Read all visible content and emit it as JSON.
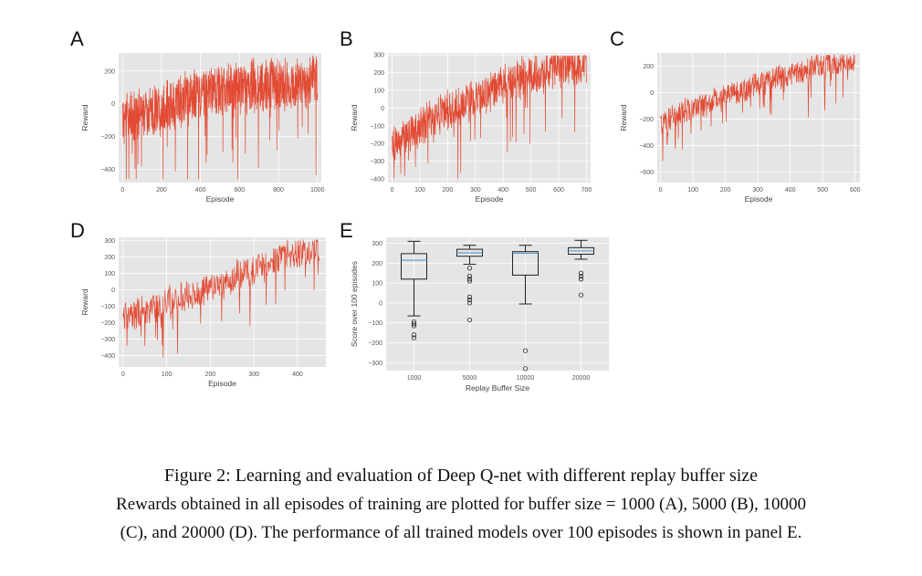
{
  "panels": {
    "A": {
      "letter": "A"
    },
    "B": {
      "letter": "B"
    },
    "C": {
      "letter": "C"
    },
    "D": {
      "letter": "D"
    },
    "E": {
      "letter": "E"
    }
  },
  "caption": {
    "title": "Figure 2: Learning and evaluation of Deep Q-net with different replay buffer size",
    "line1": "Rewards obtained in all episodes of training are plotted for buffer size = 1000 (A), 5000 (B), 10000",
    "line2": "(C), and 20000 (D). The performance of all trained models over 100 episodes is shown in panel E."
  },
  "colors": {
    "line": "#e24a33",
    "panel_bg": "#e5e5e5",
    "grid": "#ffffff",
    "box_median": "#5b9bd5"
  },
  "chart_data": [
    {
      "id": "A",
      "type": "line",
      "xlabel": "Episode",
      "ylabel": "Reward",
      "xlim": [
        -20,
        1020
      ],
      "ylim": [
        -480,
        310
      ],
      "xticks": [
        0,
        200,
        400,
        600,
        800,
        1000
      ],
      "yticks": [
        -400,
        -200,
        0,
        200
      ],
      "episodes": 1000,
      "trend": [
        [
          0,
          -80
        ],
        [
          200,
          -30
        ],
        [
          400,
          60
        ],
        [
          600,
          110
        ],
        [
          800,
          120
        ],
        [
          1000,
          130
        ]
      ],
      "noise_amp": 180
    },
    {
      "id": "B",
      "type": "line",
      "xlabel": "Episode",
      "ylabel": "Reward",
      "xlim": [
        -15,
        715
      ],
      "ylim": [
        -420,
        310
      ],
      "xticks": [
        0,
        100,
        200,
        300,
        400,
        500,
        600,
        700
      ],
      "yticks": [
        -400,
        -300,
        -200,
        -100,
        0,
        100,
        200,
        300
      ],
      "episodes": 700,
      "trend": [
        [
          0,
          -210
        ],
        [
          100,
          -110
        ],
        [
          200,
          -20
        ],
        [
          300,
          60
        ],
        [
          400,
          130
        ],
        [
          500,
          190
        ],
        [
          600,
          230
        ],
        [
          700,
          260
        ]
      ],
      "noise_amp": 130
    },
    {
      "id": "C",
      "type": "line",
      "xlabel": "Episode",
      "ylabel": "Reward",
      "xlim": [
        -10,
        615
      ],
      "ylim": [
        -680,
        300
      ],
      "xticks": [
        0,
        100,
        200,
        300,
        400,
        500,
        600
      ],
      "yticks": [
        -600,
        -400,
        -200,
        0,
        200
      ],
      "episodes": 600,
      "trend": [
        [
          0,
          -230
        ],
        [
          100,
          -120
        ],
        [
          200,
          -30
        ],
        [
          300,
          60
        ],
        [
          400,
          140
        ],
        [
          500,
          210
        ],
        [
          600,
          240
        ]
      ],
      "noise_amp": 110
    },
    {
      "id": "D",
      "type": "line",
      "xlabel": "Episode",
      "ylabel": "Reward",
      "xlim": [
        -10,
        465
      ],
      "ylim": [
        -470,
        320
      ],
      "xticks": [
        0,
        100,
        200,
        300,
        400
      ],
      "yticks": [
        -400,
        -300,
        -200,
        -100,
        0,
        100,
        200,
        300
      ],
      "episodes": 450,
      "trend": [
        [
          0,
          -170
        ],
        [
          100,
          -80
        ],
        [
          200,
          10
        ],
        [
          300,
          120
        ],
        [
          400,
          240
        ],
        [
          450,
          260
        ]
      ],
      "noise_amp": 110
    },
    {
      "id": "E",
      "type": "box",
      "xlabel": "Replay Buffer Size",
      "ylabel": "Score over 100 episodes",
      "ylim": [
        -340,
        330
      ],
      "yticks": [
        -300,
        -200,
        -100,
        0,
        100,
        200,
        300
      ],
      "categories": [
        "1000",
        "5000",
        "10000",
        "20000"
      ],
      "boxes": [
        {
          "q1": 120,
          "median": 215,
          "q3": 248,
          "whisker_low": -65,
          "whisker_high": 310,
          "outliers": [
            -95,
            -105,
            -115,
            -160,
            -175
          ]
        },
        {
          "q1": 235,
          "median": 252,
          "q3": 270,
          "whisker_low": 195,
          "whisker_high": 290,
          "outliers": [
            175,
            135,
            120,
            110,
            30,
            15,
            0,
            -85
          ]
        },
        {
          "q1": 140,
          "median": 250,
          "q3": 258,
          "whisker_low": -5,
          "whisker_high": 290,
          "outliers": [
            -240,
            -330
          ]
        },
        {
          "q1": 245,
          "median": 262,
          "q3": 278,
          "whisker_low": 220,
          "whisker_high": 315,
          "outliers": [
            150,
            135,
            120,
            40
          ]
        }
      ]
    }
  ]
}
